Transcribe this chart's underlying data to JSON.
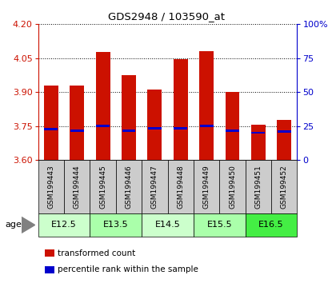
{
  "title": "GDS2948 / 103590_at",
  "samples": [
    "GSM199443",
    "GSM199444",
    "GSM199445",
    "GSM199446",
    "GSM199447",
    "GSM199448",
    "GSM199449",
    "GSM199450",
    "GSM199451",
    "GSM199452"
  ],
  "transformed_counts": [
    3.93,
    3.93,
    4.075,
    3.975,
    3.91,
    4.045,
    4.08,
    3.9,
    3.755,
    3.775
  ],
  "percentile_ranks_value": [
    3.735,
    3.73,
    3.75,
    3.73,
    3.74,
    3.74,
    3.75,
    3.73,
    3.72,
    3.725
  ],
  "ylim_left": [
    3.6,
    4.2
  ],
  "ylim_right": [
    0,
    100
  ],
  "yticks_left": [
    3.6,
    3.75,
    3.9,
    4.05,
    4.2
  ],
  "yticks_right": [
    0,
    25,
    50,
    75,
    100
  ],
  "bar_color": "#CC1100",
  "percentile_color": "#0000CC",
  "bar_bottom": 3.6,
  "age_groups": [
    {
      "label": "E12.5",
      "samples": [
        0,
        1
      ],
      "color": "#CCFFCC"
    },
    {
      "label": "E13.5",
      "samples": [
        2,
        3
      ],
      "color": "#AAFFAA"
    },
    {
      "label": "E14.5",
      "samples": [
        4,
        5
      ],
      "color": "#CCFFCC"
    },
    {
      "label": "E15.5",
      "samples": [
        6,
        7
      ],
      "color": "#AAFFAA"
    },
    {
      "label": "E16.5",
      "samples": [
        8,
        9
      ],
      "color": "#44EE44"
    }
  ],
  "legend_items": [
    {
      "label": "transformed count",
      "color": "#CC1100"
    },
    {
      "label": "percentile rank within the sample",
      "color": "#0000CC"
    }
  ],
  "bar_width": 0.55,
  "xlabel_area_color": "#CCCCCC",
  "age_label": "age"
}
